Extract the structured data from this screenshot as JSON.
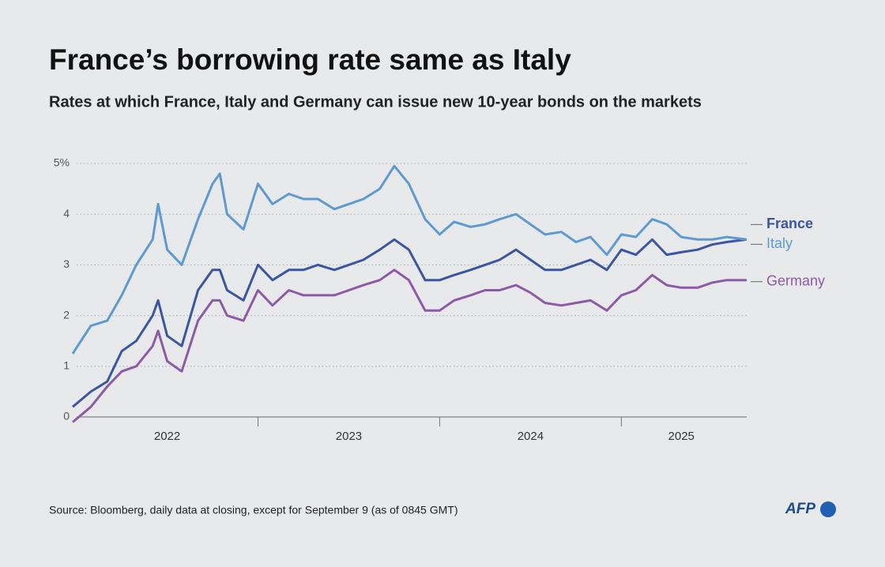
{
  "chart_data": {
    "type": "line",
    "title": "France’s borrowing rate same as Italy",
    "subtitle": "Rates at which France, Italy and Germany can issue new 10-year bonds on the markets",
    "source": "Source: Bloomberg, daily data at closing, except for September 9 (as of 0845 GMT)",
    "logo": "AFP",
    "x": [
      2021.98,
      2022.08,
      2022.17,
      2022.25,
      2022.33,
      2022.42,
      2022.45,
      2022.5,
      2022.58,
      2022.67,
      2022.75,
      2022.79,
      2022.83,
      2022.92,
      2023,
      2023.08,
      2023.17,
      2023.25,
      2023.33,
      2023.42,
      2023.5,
      2023.58,
      2023.67,
      2023.75,
      2023.83,
      2023.92,
      2024,
      2024.08,
      2024.17,
      2024.25,
      2024.33,
      2024.42,
      2024.5,
      2024.58,
      2024.67,
      2024.75,
      2024.83,
      2024.92,
      2025,
      2025.08,
      2025.17,
      2025.25,
      2025.33,
      2025.42,
      2025.5,
      2025.58,
      2025.69
    ],
    "series": [
      {
        "name": "France",
        "color": "#3a56a3",
        "values": [
          0.2,
          0.5,
          0.7,
          1.3,
          1.5,
          2.0,
          2.3,
          1.6,
          1.4,
          2.5,
          2.9,
          2.9,
          2.5,
          2.3,
          3.0,
          2.7,
          2.9,
          2.9,
          3.0,
          2.9,
          3.0,
          3.1,
          3.3,
          3.5,
          3.3,
          2.7,
          2.7,
          2.8,
          2.9,
          3.0,
          3.1,
          3.3,
          3.1,
          2.9,
          2.9,
          3.0,
          3.1,
          2.9,
          3.3,
          3.2,
          3.5,
          3.2,
          3.25,
          3.3,
          3.4,
          3.45,
          3.5
        ]
      },
      {
        "name": "Italy",
        "color": "#5d9ad3",
        "values": [
          1.25,
          1.8,
          1.9,
          2.4,
          3.0,
          3.5,
          4.2,
          3.3,
          3.0,
          3.9,
          4.6,
          4.8,
          4.0,
          3.7,
          4.6,
          4.2,
          4.4,
          4.3,
          4.3,
          4.1,
          4.2,
          4.3,
          4.5,
          4.95,
          4.6,
          3.9,
          3.6,
          3.85,
          3.75,
          3.8,
          3.9,
          4.0,
          3.8,
          3.6,
          3.65,
          3.45,
          3.55,
          3.2,
          3.6,
          3.55,
          3.9,
          3.8,
          3.55,
          3.5,
          3.5,
          3.55,
          3.5
        ]
      },
      {
        "name": "Germany",
        "color": "#8c5aa8",
        "values": [
          -0.1,
          0.2,
          0.6,
          0.9,
          1.0,
          1.4,
          1.7,
          1.1,
          0.9,
          1.9,
          2.3,
          2.3,
          2.0,
          1.9,
          2.5,
          2.2,
          2.5,
          2.4,
          2.4,
          2.4,
          2.5,
          2.6,
          2.7,
          2.9,
          2.7,
          2.1,
          2.1,
          2.3,
          2.4,
          2.5,
          2.5,
          2.6,
          2.45,
          2.25,
          2.2,
          2.25,
          2.3,
          2.1,
          2.4,
          2.5,
          2.8,
          2.6,
          2.55,
          2.55,
          2.65,
          2.7,
          2.7
        ]
      }
    ],
    "xlim": [
      2021.98,
      2025.69
    ],
    "xticks": [
      {
        "value": 2022.5,
        "label": "2022"
      },
      {
        "value": 2023.5,
        "label": "2023"
      },
      {
        "value": 2024.5,
        "label": "2024"
      },
      {
        "value": 2025.33,
        "label": "2025"
      }
    ],
    "ylim": [
      -0.3,
      5.1
    ],
    "yticks": [
      {
        "value": 5,
        "label": "5%"
      },
      4,
      3,
      2,
      1,
      0
    ],
    "grid": true
  }
}
